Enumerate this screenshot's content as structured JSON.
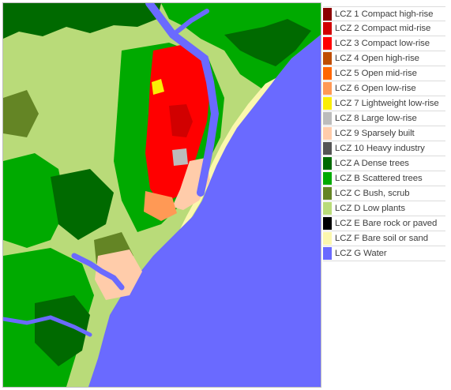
{
  "legend": {
    "items": [
      {
        "label": "LCZ 1 Compact high-rise",
        "color": "#8c0000"
      },
      {
        "label": "LCZ 2 Compact mid-rise",
        "color": "#d10000"
      },
      {
        "label": "LCZ 3 Compact low-rise",
        "color": "#ff0000"
      },
      {
        "label": "LCZ 4 Open high-rise",
        "color": "#bf4d00"
      },
      {
        "label": "LCZ 5 Open mid-rise",
        "color": "#ff6600"
      },
      {
        "label": "LCZ 6 Open low-rise",
        "color": "#ff9955"
      },
      {
        "label": "LCZ 7 Lightweight low-rise",
        "color": "#faee05"
      },
      {
        "label": "LCZ 8 Large low-rise",
        "color": "#bcbcbc"
      },
      {
        "label": "LCZ 9 Sparsely built",
        "color": "#ffccaa"
      },
      {
        "label": "LCZ 10 Heavy industry",
        "color": "#555555"
      },
      {
        "label": "LCZ A Dense trees",
        "color": "#006a00"
      },
      {
        "label": "LCZ B Scattered trees",
        "color": "#00aa00"
      },
      {
        "label": "LCZ C Bush, scrub",
        "color": "#648525"
      },
      {
        "label": "LCZ D Low plants",
        "color": "#b9db79"
      },
      {
        "label": "LCZ E Bare rock or paved",
        "color": "#000000"
      },
      {
        "label": "LCZ F Bare soil or sand",
        "color": "#fbf7ae"
      },
      {
        "label": "LCZ G Water",
        "color": "#6a6aff"
      }
    ]
  }
}
